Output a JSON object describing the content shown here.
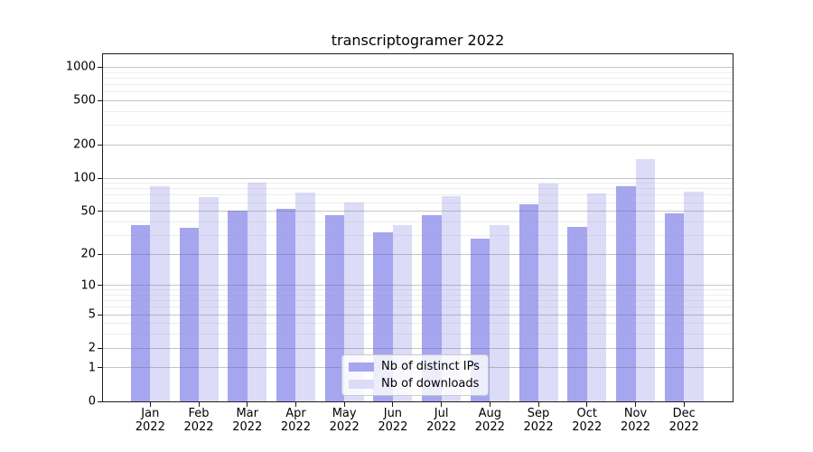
{
  "chart": {
    "title": "transcriptogramer 2022"
  },
  "chart_data": {
    "type": "bar",
    "title": "transcriptogramer 2022",
    "x_months": [
      "Jan",
      "Feb",
      "Mar",
      "Apr",
      "May",
      "Jun",
      "Jul",
      "Aug",
      "Sep",
      "Oct",
      "Nov",
      "Dec"
    ],
    "x_year": "2022",
    "series": [
      {
        "name": "Nb of distinct IPs",
        "color": "#a5a5f0",
        "values": [
          37,
          35,
          51,
          53,
          46,
          32,
          46,
          28,
          58,
          36,
          85,
          48
        ]
      },
      {
        "name": "Nb of downloads",
        "color": "#dcdcf8",
        "values": [
          84,
          67,
          91,
          74,
          60,
          37,
          68,
          37,
          89,
          72,
          148,
          75
        ]
      }
    ],
    "y_scale": "log1p",
    "ylim": [
      0,
      1300
    ],
    "y_ticks": [
      0,
      1,
      2,
      5,
      10,
      20,
      50,
      100,
      200,
      500,
      1000
    ],
    "y_tick_labels": [
      "0",
      "1",
      "2",
      "5",
      "10",
      "20",
      "50",
      "100",
      "200",
      "500",
      "1000"
    ],
    "y_minor_ticks": [
      3,
      4,
      6,
      7,
      8,
      9,
      30,
      40,
      60,
      70,
      80,
      90,
      300,
      400,
      600,
      700,
      800,
      900
    ],
    "grid": true,
    "legend_position": "lower center"
  }
}
